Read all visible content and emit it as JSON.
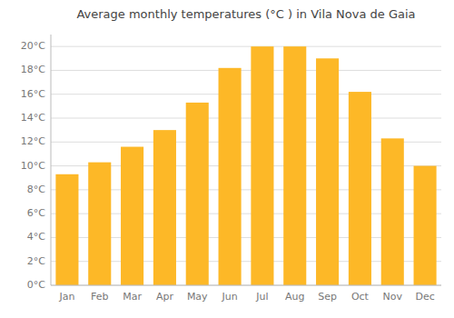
{
  "chart_data": {
    "type": "bar",
    "title": "Average monthly temperatures (°C ) in Vila Nova de Gaia",
    "categories": [
      "Jan",
      "Feb",
      "Mar",
      "Apr",
      "May",
      "Jun",
      "Jul",
      "Aug",
      "Sep",
      "Oct",
      "Nov",
      "Dec"
    ],
    "values": [
      9.3,
      10.3,
      11.6,
      13.0,
      15.3,
      18.2,
      20.0,
      20.0,
      19.0,
      16.2,
      12.3,
      10.0
    ],
    "color": "#FDB827",
    "ylim": [
      0,
      21
    ],
    "yticks": [
      {
        "value": 0,
        "label": "0°C"
      },
      {
        "value": 2,
        "label": "2°C"
      },
      {
        "value": 4,
        "label": "4°C"
      },
      {
        "value": 6,
        "label": "6°C"
      },
      {
        "value": 8,
        "label": "8°C"
      },
      {
        "value": 10,
        "label": "10°C"
      },
      {
        "value": 12,
        "label": "12°C"
      },
      {
        "value": 14,
        "label": "14°C"
      },
      {
        "value": 16,
        "label": "16°C"
      },
      {
        "value": 18,
        "label": "18°C"
      },
      {
        "value": 20,
        "label": "20°C"
      }
    ],
    "grid": true
  }
}
